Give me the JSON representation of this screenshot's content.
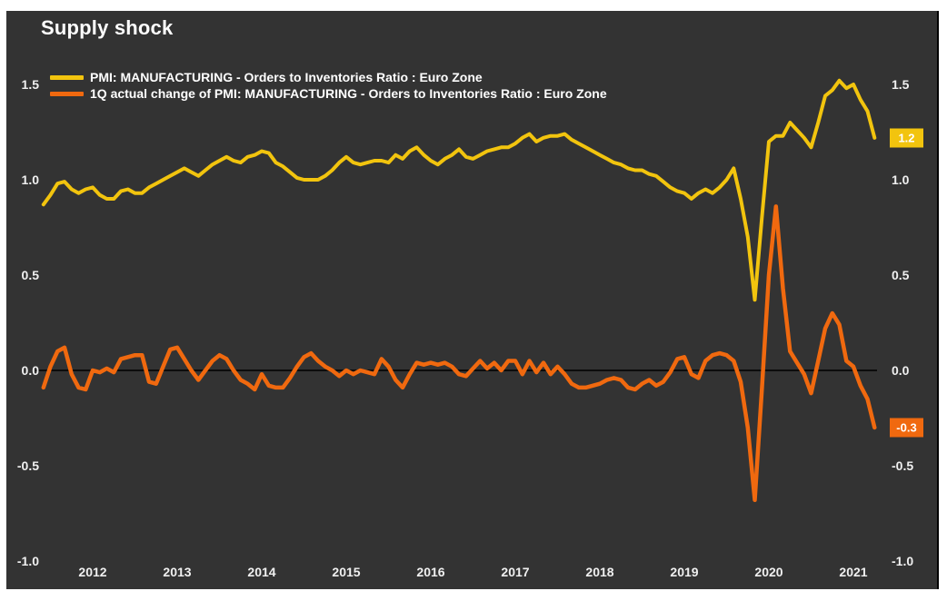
{
  "title": "Supply shock",
  "colors": {
    "page_background": "#ffffff",
    "panel_background": "#333333",
    "title_text": "#ffffff",
    "axis_text": "#f0f0f0",
    "zero_line": "#000000",
    "yellow": "#f2c40e",
    "orange": "#f0690f"
  },
  "legend": [
    {
      "label": "PMI: MANUFACTURING - Orders to Inventories Ratio : Euro Zone",
      "color_key": "yellow"
    },
    {
      "label": "1Q actual change of PMI: MANUFACTURING - Orders to Inventories Ratio : Euro Zone",
      "color_key": "orange"
    }
  ],
  "y_axis": {
    "tick_labels": [
      "1.5",
      "1.0",
      "0.5",
      "0.0",
      "-0.5",
      "-1.0"
    ],
    "tick_values": [
      1.5,
      1.0,
      0.5,
      0.0,
      -0.5,
      -1.0
    ],
    "shown_on": "both sides"
  },
  "x_axis": {
    "tick_labels": [
      "2012",
      "2013",
      "2014",
      "2015",
      "2016",
      "2017",
      "2018",
      "2019",
      "2020",
      "2021"
    ],
    "tick_values": [
      2012,
      2013,
      2014,
      2015,
      2016,
      2017,
      2018,
      2019,
      2020,
      2021
    ]
  },
  "badges": [
    {
      "label": "1.2",
      "color_key": "yellow",
      "series_index": 0
    },
    {
      "label": "-0.3",
      "color_key": "orange",
      "series_index": 1
    }
  ],
  "chart_data": {
    "type": "line",
    "title": "Supply shock",
    "ylim": [
      -1.0,
      1.5
    ],
    "xlim_year_decimal": [
      2011.3,
      2021.35
    ],
    "grid": "zero-line-only",
    "legend_position": "top-left",
    "x_start_year_decimal": 2011.4167,
    "x_step_months": 1,
    "series": [
      {
        "name": "PMI: MANUFACTURING - Orders to Inventories Ratio : Euro Zone",
        "color_key": "yellow",
        "last_value_label": "1.2",
        "values": [
          0.87,
          0.92,
          0.98,
          0.99,
          0.95,
          0.93,
          0.95,
          0.96,
          0.92,
          0.9,
          0.9,
          0.94,
          0.95,
          0.93,
          0.93,
          0.96,
          0.98,
          1.0,
          1.02,
          1.04,
          1.06,
          1.04,
          1.02,
          1.05,
          1.08,
          1.1,
          1.12,
          1.1,
          1.09,
          1.12,
          1.13,
          1.15,
          1.14,
          1.09,
          1.07,
          1.04,
          1.01,
          1.0,
          1.0,
          1.0,
          1.02,
          1.05,
          1.09,
          1.12,
          1.09,
          1.08,
          1.09,
          1.1,
          1.1,
          1.09,
          1.13,
          1.11,
          1.15,
          1.17,
          1.13,
          1.1,
          1.08,
          1.11,
          1.13,
          1.16,
          1.12,
          1.11,
          1.13,
          1.15,
          1.16,
          1.17,
          1.17,
          1.19,
          1.22,
          1.24,
          1.2,
          1.22,
          1.23,
          1.23,
          1.24,
          1.21,
          1.19,
          1.17,
          1.15,
          1.13,
          1.11,
          1.09,
          1.08,
          1.06,
          1.05,
          1.05,
          1.03,
          1.02,
          0.99,
          0.96,
          0.94,
          0.93,
          0.9,
          0.93,
          0.95,
          0.93,
          0.96,
          1.0,
          1.06,
          0.9,
          0.7,
          0.37,
          0.8,
          1.2,
          1.23,
          1.23,
          1.3,
          1.26,
          1.22,
          1.17,
          1.3,
          1.44,
          1.47,
          1.52,
          1.48,
          1.5,
          1.42,
          1.36,
          1.22
        ]
      },
      {
        "name": "1Q actual change of PMI: MANUFACTURING - Orders to Inventories Ratio : Euro Zone",
        "color_key": "orange",
        "last_value_label": "-0.3",
        "values": [
          -0.09,
          0.02,
          0.1,
          0.12,
          -0.02,
          -0.09,
          -0.1,
          0.0,
          -0.01,
          0.01,
          -0.01,
          0.06,
          0.07,
          0.08,
          0.08,
          -0.06,
          -0.07,
          0.02,
          0.11,
          0.12,
          0.06,
          0.0,
          -0.05,
          0.0,
          0.05,
          0.08,
          0.06,
          0.0,
          -0.05,
          -0.07,
          -0.1,
          -0.02,
          -0.08,
          -0.09,
          -0.09,
          -0.04,
          0.02,
          0.07,
          0.09,
          0.05,
          0.02,
          0.0,
          -0.03,
          0.0,
          -0.02,
          0.0,
          -0.01,
          -0.02,
          0.06,
          0.02,
          -0.05,
          -0.09,
          -0.02,
          0.04,
          0.03,
          0.04,
          0.03,
          0.04,
          0.02,
          -0.02,
          -0.03,
          0.01,
          0.05,
          0.01,
          0.04,
          0.0,
          0.05,
          0.05,
          -0.02,
          0.05,
          -0.01,
          0.04,
          -0.02,
          0.02,
          -0.02,
          -0.07,
          -0.09,
          -0.09,
          -0.08,
          -0.07,
          -0.05,
          -0.04,
          -0.05,
          -0.09,
          -0.1,
          -0.07,
          -0.05,
          -0.08,
          -0.06,
          -0.01,
          0.06,
          0.07,
          -0.02,
          -0.04,
          0.05,
          0.08,
          0.09,
          0.08,
          0.05,
          -0.06,
          -0.3,
          -0.68,
          -0.1,
          0.5,
          0.86,
          0.43,
          0.1,
          0.04,
          -0.02,
          -0.12,
          0.05,
          0.22,
          0.3,
          0.24,
          0.05,
          0.02,
          -0.08,
          -0.15,
          -0.3
        ]
      }
    ]
  }
}
